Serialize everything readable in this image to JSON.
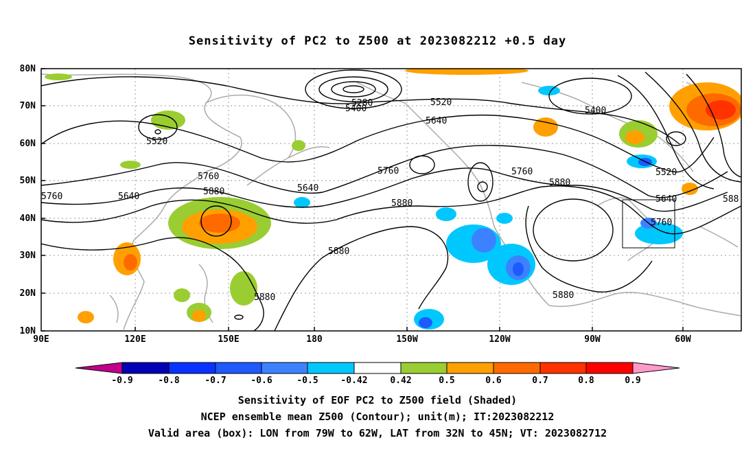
{
  "title": "Sensitivity of PC2 to Z500 at 2023082212 +0.5 day",
  "lat_labels": [
    "80N",
    "70N",
    "60N",
    "50N",
    "40N",
    "30N",
    "20N",
    "10N"
  ],
  "lon_labels": [
    "90E",
    "120E",
    "150E",
    "180",
    "150W",
    "120W",
    "90W",
    "60W"
  ],
  "contour_labels": [
    "5280",
    "5400",
    "5520",
    "5400",
    "5640",
    "5520",
    "5760",
    "5760",
    "5640",
    "5760",
    "5880",
    "5640",
    "5880",
    "5880",
    "5880",
    "5520",
    "5640",
    "5760",
    "5880",
    "588"
  ],
  "colorbar": {
    "labels": [
      "-0.9",
      "-0.8",
      "-0.7",
      "-0.6",
      "-0.5",
      "-0.42",
      "0.42",
      "0.5",
      "0.6",
      "0.7",
      "0.8",
      "0.9"
    ],
    "colors": [
      "#c0008c",
      "#0000b4",
      "#0a32ff",
      "#1e5aff",
      "#3c82ff",
      "#00c8ff",
      "#ffffff",
      "#9acd32",
      "#ffa000",
      "#ff6a00",
      "#ff3200",
      "#ff0000",
      "#ff9ac8"
    ]
  },
  "captions": [
    "Sensitivity of EOF PC2 to Z500 field (Shaded)",
    "NCEP ensemble mean Z500 (Contour); unit(m); IT:2023082212",
    "Valid area (box): LON from 79W to 62W, LAT from 32N to 45N; VT: 2023082712"
  ]
}
